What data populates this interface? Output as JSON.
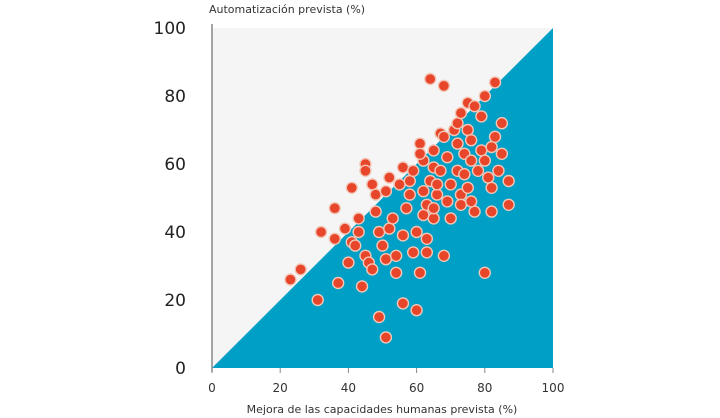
{
  "chart_data": {
    "type": "scatter",
    "title": "",
    "xlabel": "Mejora de las capacidades humanas prevista (%)",
    "ylabel": "Automatización prevista (%)",
    "xlim": [
      0,
      100
    ],
    "ylim": [
      0,
      100
    ],
    "xticks": [
      "0",
      "20",
      "40",
      "60",
      "80",
      "100"
    ],
    "yticks": [
      "0",
      "20",
      "40",
      "60",
      "80",
      "100"
    ],
    "regions": [
      {
        "name": "above diagonal (y > x)",
        "color": "#f5f5f5"
      },
      {
        "name": "below diagonal (y < x)",
        "color": "#00a0c6"
      }
    ],
    "point_color": "#e8462a",
    "points": [
      [
        23,
        26
      ],
      [
        26,
        29
      ],
      [
        31,
        20
      ],
      [
        32,
        40
      ],
      [
        36,
        47
      ],
      [
        36,
        38
      ],
      [
        37,
        25
      ],
      [
        39,
        41
      ],
      [
        40,
        31
      ],
      [
        41,
        37
      ],
      [
        41,
        53
      ],
      [
        42,
        36
      ],
      [
        43,
        44
      ],
      [
        43,
        40
      ],
      [
        44,
        24
      ],
      [
        45,
        60
      ],
      [
        45,
        58
      ],
      [
        45,
        33
      ],
      [
        46,
        31
      ],
      [
        47,
        29
      ],
      [
        47,
        54
      ],
      [
        48,
        51
      ],
      [
        48,
        46
      ],
      [
        49,
        15
      ],
      [
        49,
        40
      ],
      [
        50,
        36
      ],
      [
        51,
        32
      ],
      [
        51,
        9
      ],
      [
        51,
        52
      ],
      [
        52,
        56
      ],
      [
        52,
        41
      ],
      [
        53,
        44
      ],
      [
        54,
        28
      ],
      [
        54,
        33
      ],
      [
        55,
        54
      ],
      [
        56,
        19
      ],
      [
        56,
        59
      ],
      [
        56,
        39
      ],
      [
        57,
        47
      ],
      [
        58,
        51
      ],
      [
        58,
        55
      ],
      [
        59,
        34
      ],
      [
        59,
        58
      ],
      [
        60,
        17
      ],
      [
        60,
        40
      ],
      [
        61,
        66
      ],
      [
        61,
        28
      ],
      [
        62,
        52
      ],
      [
        62,
        61
      ],
      [
        62,
        45
      ],
      [
        63,
        34
      ],
      [
        63,
        38
      ],
      [
        63,
        48
      ],
      [
        64,
        55
      ],
      [
        64,
        85
      ],
      [
        65,
        64
      ],
      [
        65,
        59
      ],
      [
        65,
        44
      ],
      [
        66,
        51
      ],
      [
        66,
        54
      ],
      [
        67,
        69
      ],
      [
        67,
        58
      ],
      [
        68,
        83
      ],
      [
        68,
        33
      ],
      [
        69,
        49
      ],
      [
        69,
        62
      ],
      [
        70,
        44
      ],
      [
        70,
        54
      ],
      [
        71,
        70
      ],
      [
        72,
        66
      ],
      [
        72,
        72
      ],
      [
        72,
        58
      ],
      [
        73,
        75
      ],
      [
        73,
        51
      ],
      [
        74,
        63
      ],
      [
        74,
        57
      ],
      [
        75,
        78
      ],
      [
        75,
        70
      ],
      [
        75,
        53
      ],
      [
        76,
        61
      ],
      [
        76,
        67
      ],
      [
        77,
        46
      ],
      [
        77,
        77
      ],
      [
        78,
        58
      ],
      [
        79,
        64
      ],
      [
        79,
        74
      ],
      [
        80,
        61
      ],
      [
        80,
        28
      ],
      [
        80,
        80
      ],
      [
        81,
        56
      ],
      [
        82,
        65
      ],
      [
        82,
        46
      ],
      [
        83,
        84
      ],
      [
        83,
        68
      ],
      [
        84,
        58
      ],
      [
        85,
        72
      ],
      [
        85,
        63
      ],
      [
        87,
        55
      ],
      [
        87,
        48
      ],
      [
        73,
        48
      ],
      [
        68,
        68
      ],
      [
        82,
        53
      ],
      [
        76,
        49
      ],
      [
        65,
        47
      ],
      [
        61,
        63
      ]
    ]
  }
}
